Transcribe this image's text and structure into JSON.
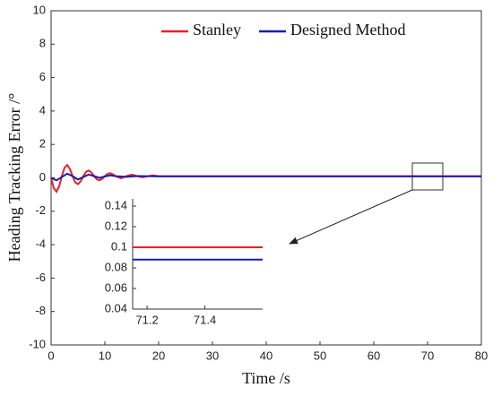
{
  "chart_data": [
    {
      "type": "line",
      "x_label": "Time /s",
      "y_label": "Heading Tracking Error /°",
      "xlim": [
        0,
        80
      ],
      "xticks": [
        0,
        10,
        20,
        30,
        40,
        50,
        60,
        70,
        80
      ],
      "ylim": [
        -10,
        10
      ],
      "yticks": [
        -10,
        -8,
        -6,
        -4,
        -2,
        0,
        2,
        4,
        6,
        8,
        10
      ],
      "legend": "top",
      "series": [
        {
          "name": "Stanley",
          "color": "#e8202a",
          "x": [
            0,
            0.5,
            1,
            1.5,
            2,
            2.5,
            3,
            3.5,
            4,
            4.5,
            5,
            5.5,
            6,
            6.5,
            7,
            7.5,
            8,
            8.5,
            9,
            9.5,
            10,
            10.5,
            11,
            11.5,
            12,
            13,
            14,
            15,
            16,
            17,
            18,
            19,
            20,
            80
          ],
          "values": [
            0,
            -0.62,
            -0.83,
            -0.51,
            0.1,
            0.61,
            0.77,
            0.53,
            0.1,
            -0.27,
            -0.38,
            -0.21,
            0.1,
            0.36,
            0.44,
            0.32,
            0.1,
            -0.09,
            -0.15,
            -0.06,
            0.1,
            0.24,
            0.28,
            0.21,
            0.1,
            -0.03,
            0.1,
            0.19,
            0.1,
            0.035,
            0.1,
            0.147,
            0.1,
            0.1
          ]
        },
        {
          "name": "Designed Method",
          "color": "#1c1ca8",
          "x": [
            0,
            1,
            2,
            3,
            4,
            5,
            6,
            7,
            8,
            9,
            10,
            11,
            12,
            14,
            16,
            20,
            80
          ],
          "values": [
            0,
            -0.15,
            0.05,
            0.25,
            0.1,
            -0.1,
            0.05,
            0.2,
            0.1,
            0,
            0.08,
            0.15,
            0.1,
            0.06,
            0.11,
            0.088,
            0.088
          ]
        }
      ]
    },
    {
      "type": "line",
      "xlim": [
        71.15,
        71.6
      ],
      "xticks": [
        71.2,
        71.4
      ],
      "ylim": [
        0.04,
        0.14
      ],
      "yticks": [
        0.04,
        0.06,
        0.08,
        0.1,
        0.12,
        0.14
      ],
      "series": [
        {
          "color": "#e8202a",
          "x": [
            71.15,
            71.6
          ],
          "values": [
            0.1,
            0.1
          ]
        },
        {
          "color": "#1c1ca8",
          "x": [
            71.15,
            71.6
          ],
          "values": [
            0.088,
            0.088
          ]
        }
      ]
    }
  ]
}
